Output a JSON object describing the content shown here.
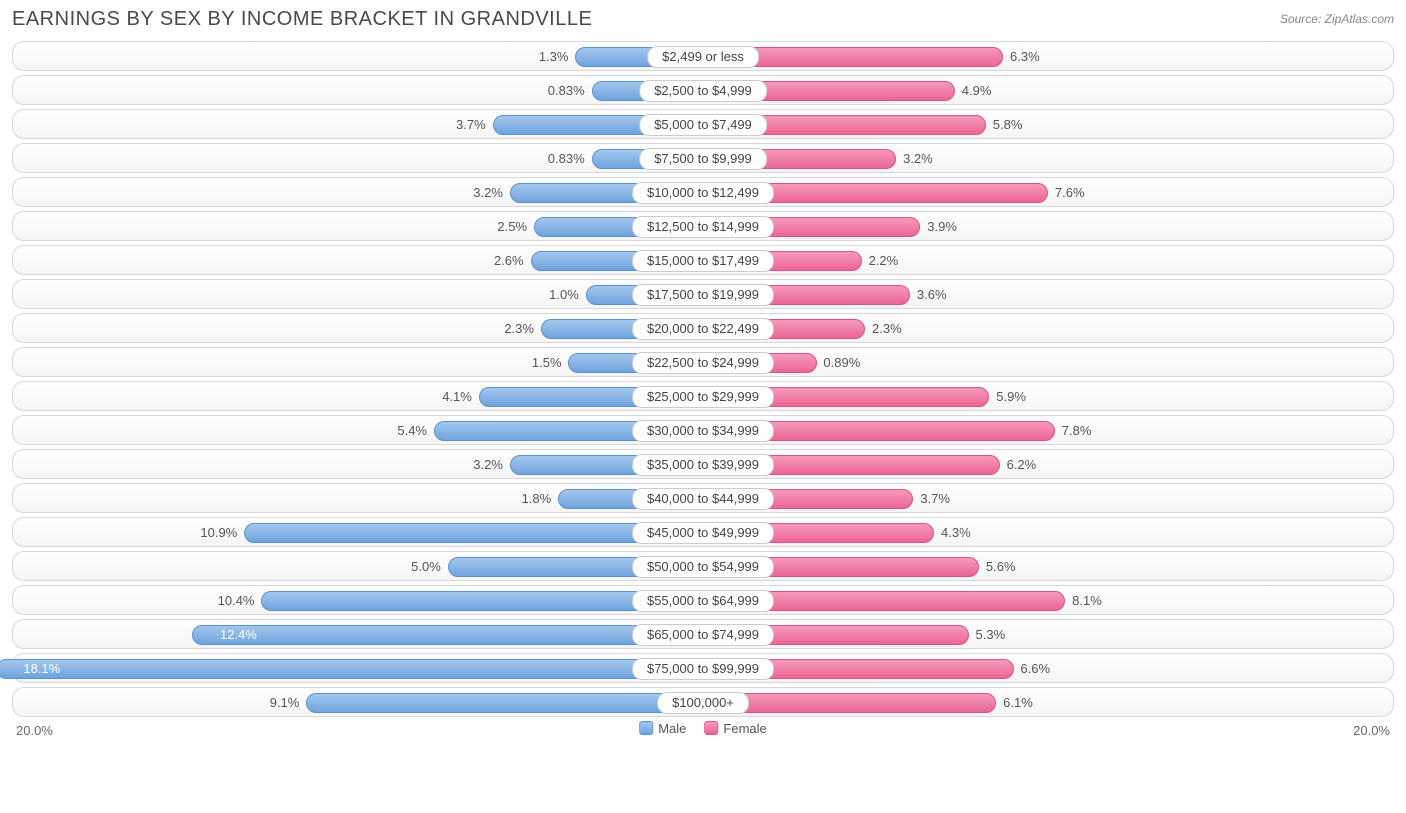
{
  "title": "EARNINGS BY SEX BY INCOME BRACKET IN GRANDVILLE",
  "source": "Source: ZipAtlas.com",
  "chart": {
    "type": "diverging-bar",
    "max_pct": 20.0,
    "axis_label_left": "20.0%",
    "axis_label_right": "20.0%",
    "male_color_light": "#a4c7ed",
    "male_color_dark": "#6ea3de",
    "male_border": "#5a93d0",
    "female_color_light": "#f59abb",
    "female_color_dark": "#ec6597",
    "female_border": "#e05088",
    "row_bg_top": "#ffffff",
    "row_bg_bottom": "#f5f5f5",
    "row_border": "#d8d8d8",
    "text_color": "#555555",
    "legend": {
      "male": "Male",
      "female": "Female"
    },
    "rows": [
      {
        "label": "$2,499 or less",
        "male": 1.3,
        "male_txt": "1.3%",
        "female": 6.3,
        "female_txt": "6.3%"
      },
      {
        "label": "$2,500 to $4,999",
        "male": 0.83,
        "male_txt": "0.83%",
        "female": 4.9,
        "female_txt": "4.9%"
      },
      {
        "label": "$5,000 to $7,499",
        "male": 3.7,
        "male_txt": "3.7%",
        "female": 5.8,
        "female_txt": "5.8%"
      },
      {
        "label": "$7,500 to $9,999",
        "male": 0.83,
        "male_txt": "0.83%",
        "female": 3.2,
        "female_txt": "3.2%"
      },
      {
        "label": "$10,000 to $12,499",
        "male": 3.2,
        "male_txt": "3.2%",
        "female": 7.6,
        "female_txt": "7.6%"
      },
      {
        "label": "$12,500 to $14,999",
        "male": 2.5,
        "male_txt": "2.5%",
        "female": 3.9,
        "female_txt": "3.9%"
      },
      {
        "label": "$15,000 to $17,499",
        "male": 2.6,
        "male_txt": "2.6%",
        "female": 2.2,
        "female_txt": "2.2%"
      },
      {
        "label": "$17,500 to $19,999",
        "male": 1.0,
        "male_txt": "1.0%",
        "female": 3.6,
        "female_txt": "3.6%"
      },
      {
        "label": "$20,000 to $22,499",
        "male": 2.3,
        "male_txt": "2.3%",
        "female": 2.3,
        "female_txt": "2.3%"
      },
      {
        "label": "$22,500 to $24,999",
        "male": 1.5,
        "male_txt": "1.5%",
        "female": 0.89,
        "female_txt": "0.89%"
      },
      {
        "label": "$25,000 to $29,999",
        "male": 4.1,
        "male_txt": "4.1%",
        "female": 5.9,
        "female_txt": "5.9%"
      },
      {
        "label": "$30,000 to $34,999",
        "male": 5.4,
        "male_txt": "5.4%",
        "female": 7.8,
        "female_txt": "7.8%"
      },
      {
        "label": "$35,000 to $39,999",
        "male": 3.2,
        "male_txt": "3.2%",
        "female": 6.2,
        "female_txt": "6.2%"
      },
      {
        "label": "$40,000 to $44,999",
        "male": 1.8,
        "male_txt": "1.8%",
        "female": 3.7,
        "female_txt": "3.7%"
      },
      {
        "label": "$45,000 to $49,999",
        "male": 10.9,
        "male_txt": "10.9%",
        "female": 4.3,
        "female_txt": "4.3%"
      },
      {
        "label": "$50,000 to $54,999",
        "male": 5.0,
        "male_txt": "5.0%",
        "female": 5.6,
        "female_txt": "5.6%"
      },
      {
        "label": "$55,000 to $64,999",
        "male": 10.4,
        "male_txt": "10.4%",
        "female": 8.1,
        "female_txt": "8.1%"
      },
      {
        "label": "$65,000 to $74,999",
        "male": 12.4,
        "male_txt": "12.4%",
        "female": 5.3,
        "female_txt": "5.3%"
      },
      {
        "label": "$75,000 to $99,999",
        "male": 18.1,
        "male_txt": "18.1%",
        "female": 6.6,
        "female_txt": "6.6%"
      },
      {
        "label": "$100,000+",
        "male": 9.1,
        "male_txt": "9.1%",
        "female": 6.1,
        "female_txt": "6.1%"
      }
    ]
  }
}
